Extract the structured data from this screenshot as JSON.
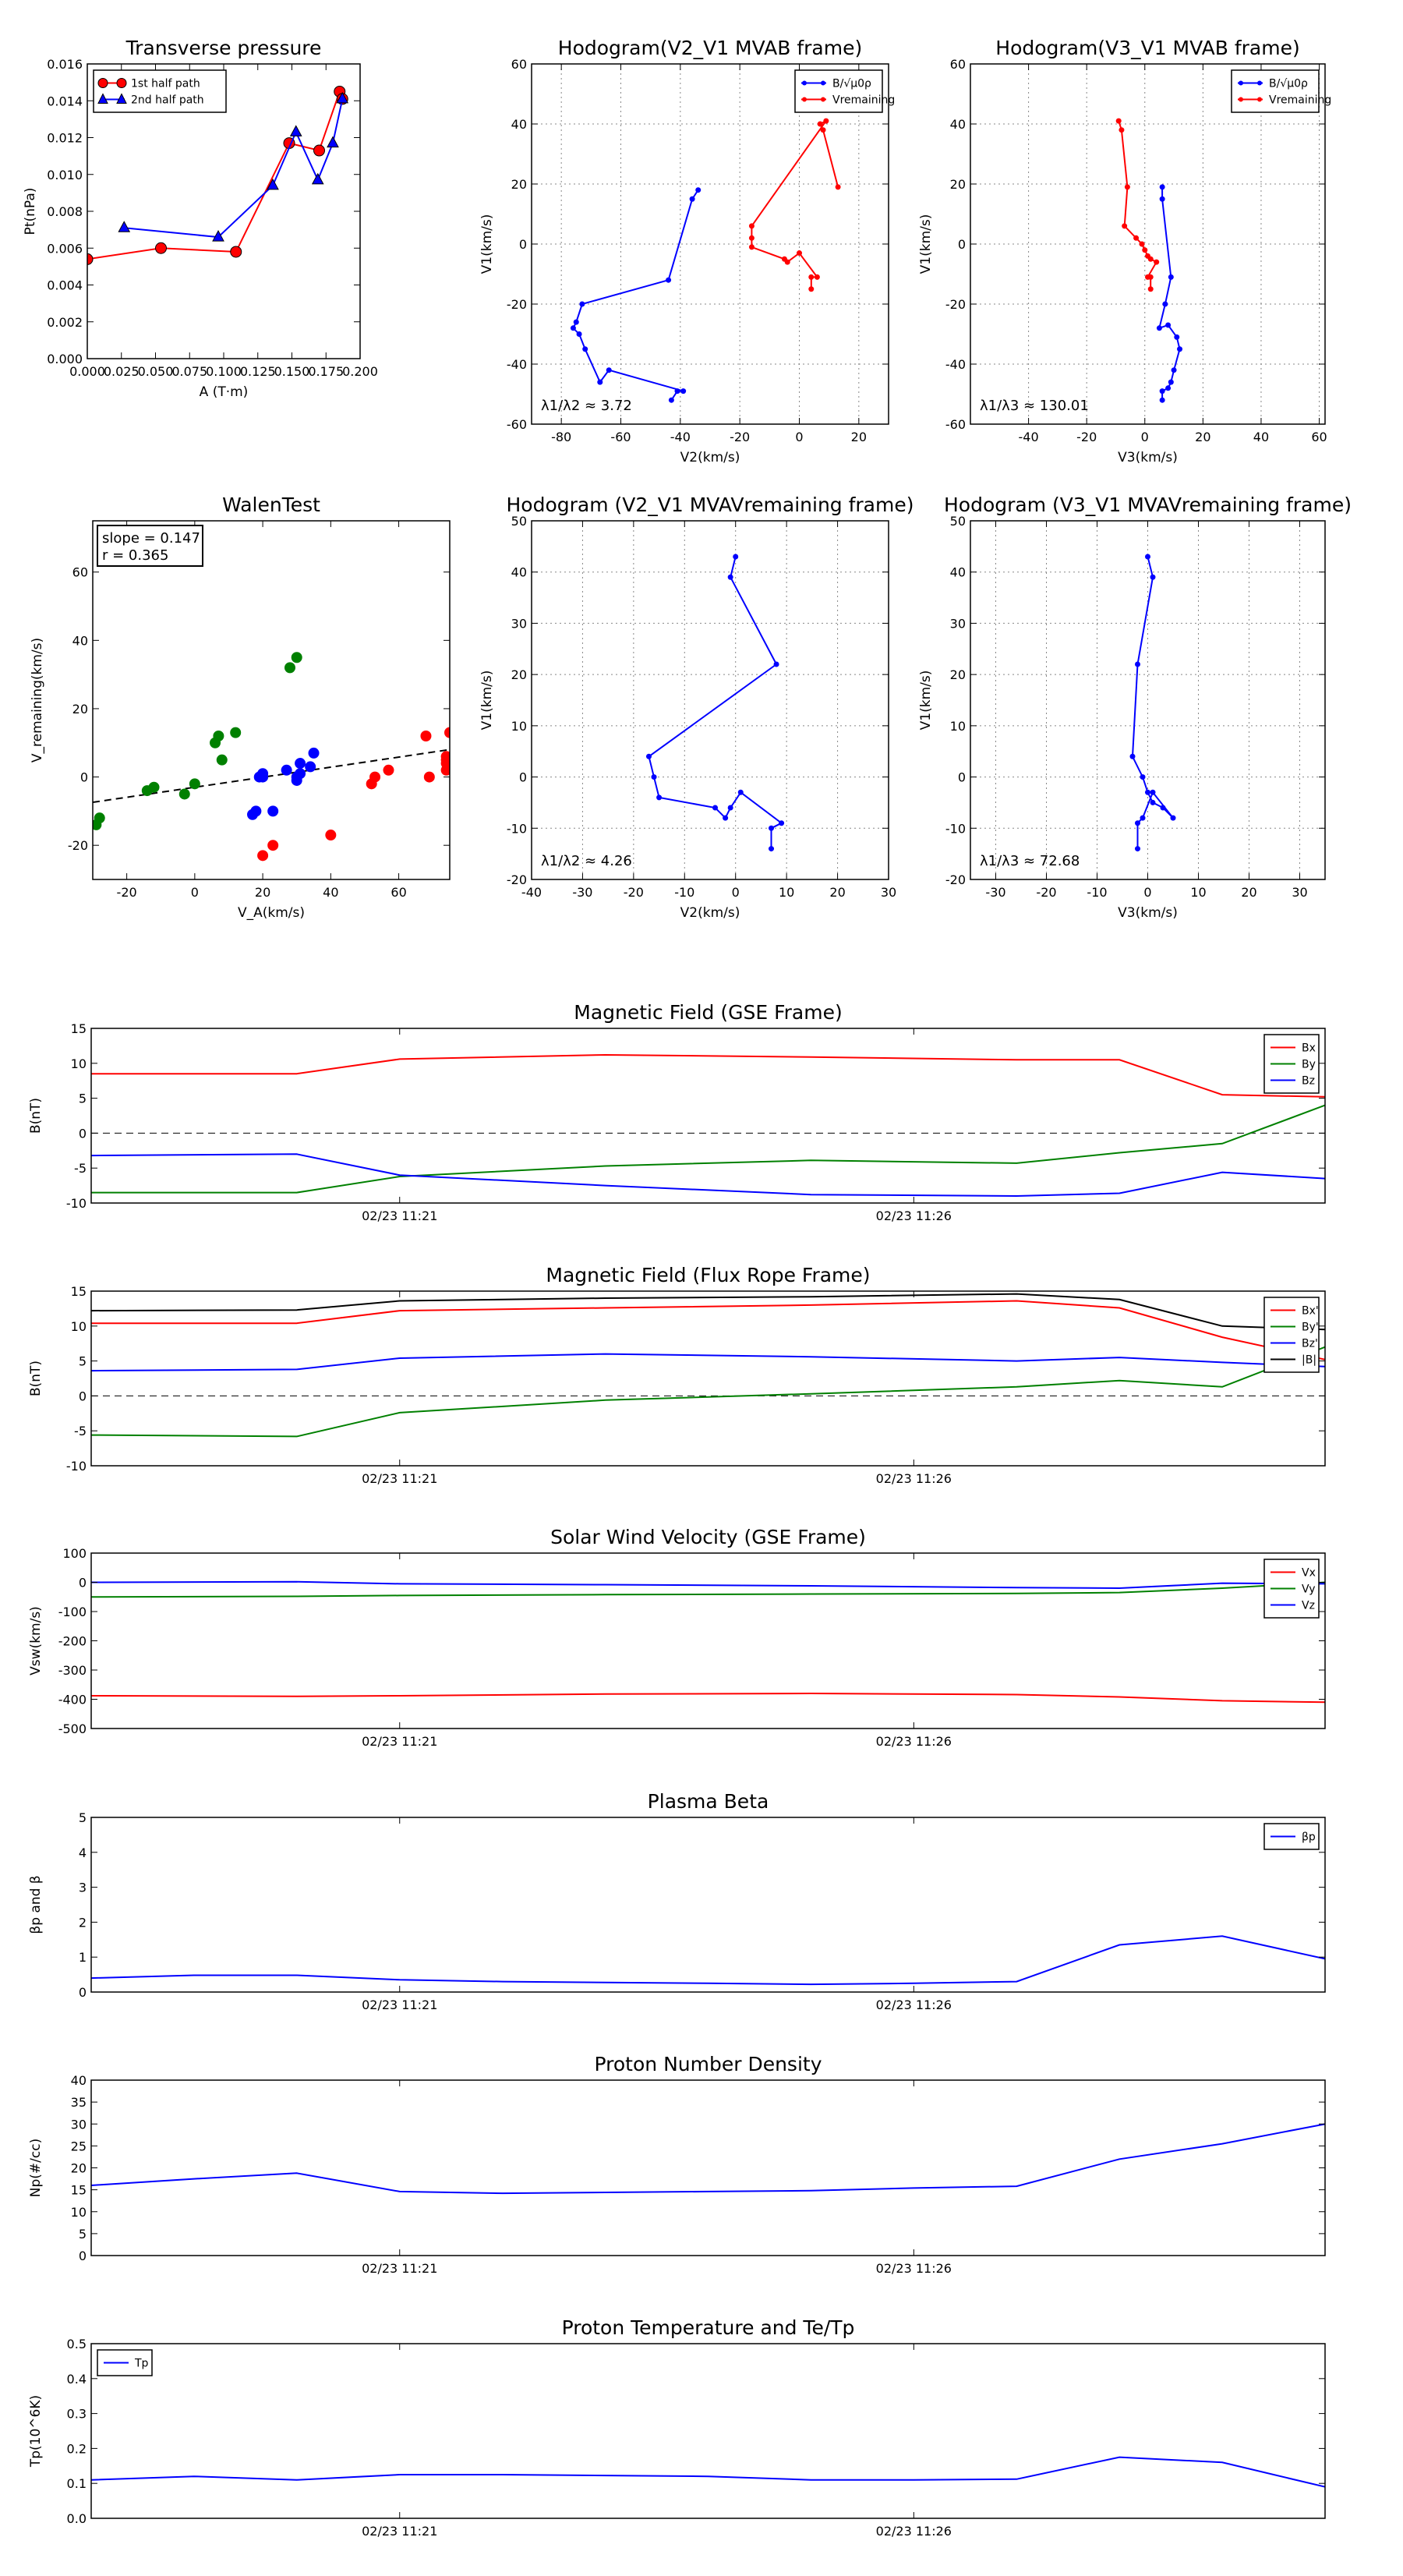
{
  "figure": {
    "background": "#ffffff"
  },
  "chart_data": [
    {
      "id": "transverse",
      "type": "line",
      "title": "Transverse pressure",
      "xlabel": "A (T·m)",
      "ylabel": "Pt(nPa)",
      "xlim": [
        0,
        0.2
      ],
      "ylim": [
        0,
        0.016
      ],
      "xticks": [
        0,
        0.025,
        0.05,
        0.075,
        0.1,
        0.125,
        0.15,
        0.175,
        0.2
      ],
      "xtick_labels": [
        "0.000",
        "0.025",
        "0.050",
        "0.075",
        "0.100",
        "0.125",
        "0.150",
        "0.175",
        "0.200"
      ],
      "yticks": [
        0,
        0.002,
        0.004,
        0.006,
        0.008,
        0.01,
        0.012,
        0.014,
        0.016
      ],
      "ytick_labels": [
        "0.000",
        "0.002",
        "0.004",
        "0.006",
        "0.008",
        "0.010",
        "0.012",
        "0.014",
        "0.016"
      ],
      "grid": false,
      "legend_loc": "upper-left",
      "series": [
        {
          "name": "1st half path",
          "color": "#ff0000",
          "marker": "circle",
          "x": [
            0.0,
            0.054,
            0.109,
            0.148,
            0.17,
            0.185,
            0.187
          ],
          "y": [
            0.0054,
            0.006,
            0.0058,
            0.0117,
            0.0113,
            0.0145,
            0.0141
          ]
        },
        {
          "name": "2nd half path",
          "color": "#0000ff",
          "marker": "triangle",
          "x": [
            0.027,
            0.096,
            0.136,
            0.153,
            0.169,
            0.18,
            0.187
          ],
          "y": [
            0.0071,
            0.0066,
            0.0094,
            0.0123,
            0.0097,
            0.0117,
            0.0141
          ]
        }
      ]
    },
    {
      "id": "hodo1",
      "type": "line",
      "title": "Hodogram(V2_V1 MVAB frame)",
      "xlabel": "V2(km/s)",
      "ylabel": "V1(km/s)",
      "xlim": [
        -90,
        30
      ],
      "ylim": [
        -60,
        60
      ],
      "xticks": [
        -80,
        -60,
        -40,
        -20,
        0,
        20
      ],
      "yticks": [
        -60,
        -40,
        -20,
        0,
        20,
        40,
        60
      ],
      "grid": true,
      "legend_loc": "upper-right",
      "annotation": "λ1/λ2 ≈ 3.72",
      "series": [
        {
          "name": "B/√μ0ρ",
          "color": "#0000ff",
          "marker": "dot",
          "x": [
            -34,
            -36,
            -44,
            -73,
            -75,
            -76,
            -74,
            -72,
            -67,
            -64,
            -39,
            -41,
            -43
          ],
          "y": [
            18,
            15,
            -12,
            -20,
            -26,
            -28,
            -30,
            -35,
            -46,
            -42,
            -49,
            -49,
            -52
          ]
        },
        {
          "name": "Vremaining",
          "color": "#ff0000",
          "marker": "dot",
          "x": [
            13,
            8,
            7,
            9,
            -16,
            -16,
            -16,
            -5,
            -4,
            0,
            6,
            4,
            4
          ],
          "y": [
            19,
            38,
            40,
            41,
            6,
            2,
            -1,
            -5,
            -6,
            -3,
            -11,
            -11,
            -15
          ]
        }
      ]
    },
    {
      "id": "hodo2",
      "type": "line",
      "title": "Hodogram(V3_V1 MVAB frame)",
      "xlabel": "V3(km/s)",
      "ylabel": "V1(km/s)",
      "xlim": [
        -60,
        62
      ],
      "ylim": [
        -60,
        60
      ],
      "xticks": [
        -40,
        -20,
        0,
        20,
        40,
        60
      ],
      "yticks": [
        -60,
        -40,
        -20,
        0,
        20,
        40,
        60
      ],
      "grid": true,
      "legend_loc": "upper-right",
      "annotation": "λ1/λ3 ≈ 130.01",
      "series": [
        {
          "name": "B/√μ0ρ",
          "color": "#0000ff",
          "marker": "dot",
          "x": [
            6,
            6,
            9,
            7,
            5,
            8,
            11,
            12,
            10,
            9,
            8,
            6,
            6
          ],
          "y": [
            19,
            15,
            -11,
            -20,
            -28,
            -27,
            -31,
            -35,
            -42,
            -46,
            -48,
            -49,
            -52
          ]
        },
        {
          "name": "Vremaining",
          "color": "#ff0000",
          "marker": "dot",
          "x": [
            -9,
            -8,
            -6,
            -7,
            -3,
            -1,
            0,
            1,
            2,
            4,
            1,
            2,
            2
          ],
          "y": [
            41,
            38,
            19,
            6,
            2,
            0,
            -2,
            -4,
            -5,
            -6,
            -11,
            -11,
            -15
          ]
        }
      ]
    },
    {
      "id": "walen",
      "type": "scatter",
      "title": "WalenTest",
      "xlabel": "V_A(km/s)",
      "ylabel": "V_remaining(km/s)",
      "xlim": [
        -30,
        75
      ],
      "ylim": [
        -30,
        75
      ],
      "xticks": [
        -20,
        0,
        20,
        40,
        60
      ],
      "yticks": [
        -20,
        0,
        20,
        40,
        60
      ],
      "grid": false,
      "annotation_lines": [
        "slope = 0.147",
        "r = 0.365"
      ],
      "fit_line": {
        "slope": 0.147,
        "intercept": -3.0,
        "color": "#000000"
      },
      "series": [
        {
          "name": "green",
          "color": "#008000",
          "x": [
            -29,
            -28,
            -14,
            -12,
            -3,
            0,
            7,
            8,
            6,
            12,
            28,
            30
          ],
          "y": [
            -14,
            -12,
            -4,
            -3,
            -5,
            -2,
            12,
            5,
            10,
            13,
            32,
            35
          ]
        },
        {
          "name": "blue",
          "color": "#0000ff",
          "x": [
            17,
            18,
            19,
            20,
            20,
            23,
            27,
            30,
            31,
            34,
            35,
            30,
            31
          ],
          "y": [
            -11,
            -10,
            0,
            0,
            1,
            -10,
            2,
            -1,
            4,
            3,
            7,
            0,
            1
          ]
        },
        {
          "name": "red",
          "color": "#ff0000",
          "x": [
            20,
            23,
            40,
            52,
            53,
            57,
            68,
            69,
            74,
            74,
            74,
            74,
            75
          ],
          "y": [
            -23,
            -20,
            -17,
            -2,
            0,
            2,
            12,
            0,
            2,
            4,
            5,
            6,
            13
          ]
        }
      ]
    },
    {
      "id": "hodo3",
      "type": "line",
      "title": "Hodogram (V2_V1 MVAVremaining frame)",
      "xlabel": "V2(km/s)",
      "ylabel": "V1(km/s)",
      "xlim": [
        -40,
        30
      ],
      "ylim": [
        -20,
        50
      ],
      "xticks": [
        -40,
        -30,
        -20,
        -10,
        0,
        10,
        20,
        30
      ],
      "yticks": [
        -20,
        -10,
        0,
        10,
        20,
        30,
        40,
        50
      ],
      "grid": true,
      "annotation": "λ1/λ2 ≈ 4.26",
      "series": [
        {
          "name": "V",
          "color": "#0000ff",
          "marker": "dot",
          "x": [
            0,
            -1,
            8,
            -17,
            -16,
            -15,
            -4,
            -2,
            -1,
            1,
            9,
            7,
            7
          ],
          "y": [
            43,
            39,
            22,
            4,
            0,
            -4,
            -6,
            -8,
            -6,
            -3,
            -9,
            -10,
            -14
          ]
        }
      ]
    },
    {
      "id": "hodo4",
      "type": "line",
      "title": "Hodogram (V3_V1 MVAVremaining frame)",
      "xlabel": "V3(km/s)",
      "ylabel": "V1(km/s)",
      "xlim": [
        -35,
        35
      ],
      "ylim": [
        -20,
        50
      ],
      "xticks": [
        -30,
        -20,
        -10,
        0,
        10,
        20,
        30
      ],
      "yticks": [
        -20,
        -10,
        0,
        10,
        20,
        30,
        40,
        50
      ],
      "grid": true,
      "annotation": "λ1/λ3 ≈ 72.68",
      "series": [
        {
          "name": "V",
          "color": "#0000ff",
          "marker": "dot",
          "x": [
            0,
            1,
            -2,
            -3,
            -1,
            0,
            1,
            3,
            5,
            1,
            -1,
            -2,
            -2
          ],
          "y": [
            43,
            39,
            22,
            4,
            0,
            -3,
            -5,
            -6,
            -8,
            -3,
            -8,
            -9,
            -14
          ]
        }
      ]
    },
    {
      "id": "bgse",
      "type": "line",
      "title": "Magnetic Field (GSE Frame)",
      "ylabel": "B(nT)",
      "xlim": [
        0,
        12
      ],
      "ylim": [
        -10,
        15
      ],
      "yticks": [
        -10,
        -5,
        0,
        5,
        10,
        15
      ],
      "xtick_pos": [
        3,
        8
      ],
      "xtick_labels": [
        "02/23 11:21",
        "02/23 11:26"
      ],
      "zero_line": true,
      "legend_loc": "upper-right",
      "x": [
        0,
        2,
        3,
        5,
        7,
        9,
        10,
        11,
        12
      ],
      "series": [
        {
          "name": "Bx",
          "color": "#ff0000",
          "values": [
            8.5,
            8.5,
            10.6,
            11.2,
            10.9,
            10.5,
            10.5,
            5.5,
            5.2
          ]
        },
        {
          "name": "By",
          "color": "#008000",
          "values": [
            -8.5,
            -8.5,
            -6.2,
            -4.7,
            -3.9,
            -4.3,
            -2.8,
            -1.5,
            4.0
          ]
        },
        {
          "name": "Bz",
          "color": "#0000ff",
          "values": [
            -3.2,
            -3.0,
            -6.0,
            -7.5,
            -8.8,
            -9.0,
            -8.6,
            -5.6,
            -6.5
          ]
        }
      ]
    },
    {
      "id": "bflux",
      "type": "line",
      "title": "Magnetic Field (Flux Rope Frame)",
      "ylabel": "B(nT)",
      "xlim": [
        0,
        12
      ],
      "ylim": [
        -10,
        15
      ],
      "yticks": [
        -10,
        -5,
        0,
        5,
        10,
        15
      ],
      "xtick_pos": [
        3,
        8
      ],
      "xtick_labels": [
        "02/23 11:21",
        "02/23 11:26"
      ],
      "zero_line": true,
      "legend_loc": "upper-right",
      "x": [
        0,
        2,
        3,
        5,
        7,
        9,
        10,
        11,
        12
      ],
      "series": [
        {
          "name": "Bx'",
          "color": "#ff0000",
          "values": [
            10.4,
            10.4,
            12.2,
            12.6,
            13.0,
            13.6,
            12.6,
            8.4,
            5.2
          ]
        },
        {
          "name": "By'",
          "color": "#008000",
          "values": [
            -5.6,
            -5.8,
            -2.4,
            -0.6,
            0.3,
            1.3,
            2.2,
            1.3,
            7.0
          ]
        },
        {
          "name": "Bz'",
          "color": "#0000ff",
          "values": [
            3.6,
            3.8,
            5.4,
            6.0,
            5.6,
            5.0,
            5.5,
            4.8,
            4.2
          ]
        },
        {
          "name": "|B|",
          "color": "#000000",
          "values": [
            12.2,
            12.3,
            13.6,
            14.0,
            14.2,
            14.6,
            13.8,
            10.0,
            9.5
          ]
        }
      ]
    },
    {
      "id": "vsw",
      "type": "line",
      "title": "Solar Wind Velocity (GSE Frame)",
      "ylabel": "Vsw(km/s)",
      "xlim": [
        0,
        12
      ],
      "ylim": [
        -500,
        100
      ],
      "yticks": [
        -500,
        -400,
        -300,
        -200,
        -100,
        0,
        100
      ],
      "xtick_pos": [
        3,
        8
      ],
      "xtick_labels": [
        "02/23 11:21",
        "02/23 11:26"
      ],
      "zero_line": false,
      "legend_loc": "upper-right",
      "x": [
        0,
        2,
        3,
        5,
        7,
        9,
        10,
        11,
        12
      ],
      "series": [
        {
          "name": "Vx",
          "color": "#ff0000",
          "values": [
            -388,
            -390,
            -388,
            -382,
            -380,
            -384,
            -392,
            -405,
            -410
          ]
        },
        {
          "name": "Vy",
          "color": "#008000",
          "values": [
            -50,
            -48,
            -45,
            -42,
            -40,
            -38,
            -35,
            -20,
            0
          ]
        },
        {
          "name": "Vz",
          "color": "#0000ff",
          "values": [
            0,
            2,
            -5,
            -8,
            -12,
            -18,
            -20,
            -3,
            -5
          ]
        }
      ]
    },
    {
      "id": "beta",
      "type": "line",
      "title": "Plasma Beta",
      "ylabel": "βp and β",
      "xlim": [
        0,
        12
      ],
      "ylim": [
        0,
        5
      ],
      "yticks": [
        0,
        1,
        2,
        3,
        4,
        5
      ],
      "xtick_pos": [
        3,
        8
      ],
      "xtick_labels": [
        "02/23 11:21",
        "02/23 11:26"
      ],
      "legend_loc": "upper-right",
      "x": [
        0,
        1,
        2,
        3,
        4,
        6,
        7,
        8,
        9,
        10,
        11,
        12
      ],
      "series": [
        {
          "name": "βp",
          "color": "#0000ff",
          "values": [
            0.4,
            0.48,
            0.48,
            0.35,
            0.3,
            0.25,
            0.22,
            0.25,
            0.3,
            1.35,
            1.6,
            0.95
          ]
        }
      ]
    },
    {
      "id": "np",
      "type": "line",
      "title": "Proton Number Density",
      "ylabel": "Np(#/cc)",
      "xlim": [
        0,
        12
      ],
      "ylim": [
        0,
        40
      ],
      "yticks": [
        0,
        5,
        10,
        15,
        20,
        25,
        30,
        35,
        40
      ],
      "xtick_pos": [
        3,
        8
      ],
      "xtick_labels": [
        "02/23 11:21",
        "02/23 11:26"
      ],
      "x": [
        0,
        1,
        2,
        3,
        4,
        6,
        7,
        8,
        9,
        10,
        11,
        12
      ],
      "series": [
        {
          "name": "Np",
          "color": "#0000ff",
          "values": [
            16,
            17.5,
            18.8,
            14.6,
            14.2,
            14.6,
            14.8,
            15.4,
            15.8,
            22,
            25.5,
            30
          ]
        }
      ]
    },
    {
      "id": "tp",
      "type": "line",
      "title": "Proton Temperature and Te/Tp",
      "ylabel": "Tp(10^6K)",
      "xlim": [
        0,
        12
      ],
      "ylim": [
        0,
        0.5
      ],
      "yticks": [
        0,
        0.1,
        0.2,
        0.3,
        0.4,
        0.5
      ],
      "ytick_labels": [
        "0.0",
        "0.1",
        "0.2",
        "0.3",
        "0.4",
        "0.5"
      ],
      "xtick_pos": [
        3,
        8
      ],
      "xtick_labels": [
        "02/23 11:21",
        "02/23 11:26"
      ],
      "legend_loc": "upper-left",
      "x": [
        0,
        1,
        2,
        3,
        4,
        6,
        7,
        8,
        9,
        10,
        11,
        12
      ],
      "series": [
        {
          "name": "Tp",
          "color": "#0000ff",
          "values": [
            0.11,
            0.12,
            0.11,
            0.125,
            0.125,
            0.12,
            0.11,
            0.11,
            0.112,
            0.175,
            0.16,
            0.09
          ]
        }
      ]
    }
  ]
}
